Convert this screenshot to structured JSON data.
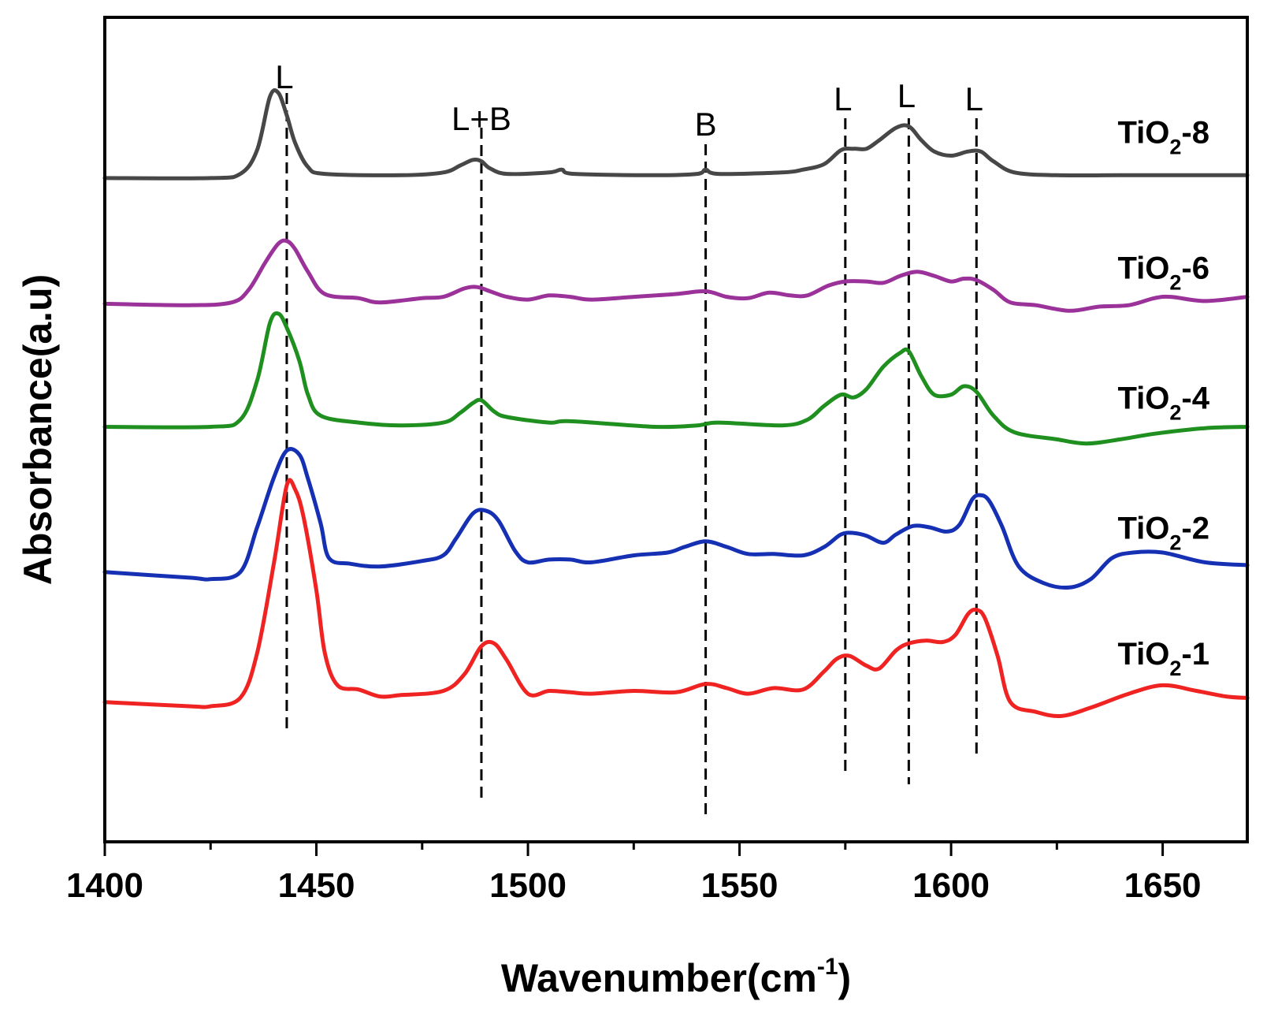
{
  "chart_data": {
    "type": "line",
    "title": "",
    "xlabel": {
      "main": "Wavenumber",
      "unit_open": "(cm",
      "unit_exp": "-1",
      "unit_close": ")"
    },
    "ylabel": "Absorbance(a.u)",
    "xlim": [
      1400,
      1670
    ],
    "ylim": [
      0,
      5.9
    ],
    "x_ticks": [
      1400,
      1450,
      1500,
      1550,
      1600,
      1650
    ],
    "x_minor_ticks": [
      1425,
      1475,
      1525,
      1575,
      1625
    ],
    "grid": false,
    "peak_markers": [
      {
        "label": "L",
        "x": 1443
      },
      {
        "label": "L+B",
        "x": 1489
      },
      {
        "label": "B",
        "x": 1542
      },
      {
        "label": "L",
        "x": 1575
      },
      {
        "label": "L",
        "x": 1590
      },
      {
        "label": "L",
        "x": 1606
      }
    ],
    "series": [
      {
        "name": "TiO2-8",
        "label_main": "TiO",
        "label_sub": "2",
        "label_suffix": "-8",
        "color": "#474747",
        "label_y": 5.0,
        "points": [
          [
            1400,
            4.75
          ],
          [
            1425,
            4.75
          ],
          [
            1432,
            4.78
          ],
          [
            1436,
            4.95
          ],
          [
            1439,
            5.33
          ],
          [
            1441,
            5.36
          ],
          [
            1443,
            5.2
          ],
          [
            1445,
            5.0
          ],
          [
            1448,
            4.83
          ],
          [
            1452,
            4.78
          ],
          [
            1470,
            4.77
          ],
          [
            1480,
            4.79
          ],
          [
            1484,
            4.84
          ],
          [
            1487,
            4.88
          ],
          [
            1489,
            4.87
          ],
          [
            1491,
            4.82
          ],
          [
            1495,
            4.78
          ],
          [
            1505,
            4.79
          ],
          [
            1508,
            4.81
          ],
          [
            1511,
            4.78
          ],
          [
            1530,
            4.77
          ],
          [
            1540,
            4.78
          ],
          [
            1542,
            4.81
          ],
          [
            1545,
            4.78
          ],
          [
            1560,
            4.79
          ],
          [
            1565,
            4.81
          ],
          [
            1570,
            4.85
          ],
          [
            1574,
            4.95
          ],
          [
            1577,
            4.96
          ],
          [
            1580,
            4.96
          ],
          [
            1583,
            5.02
          ],
          [
            1587,
            5.11
          ],
          [
            1590,
            5.12
          ],
          [
            1593,
            5.02
          ],
          [
            1596,
            4.94
          ],
          [
            1600,
            4.91
          ],
          [
            1604,
            4.94
          ],
          [
            1607,
            4.94
          ],
          [
            1610,
            4.87
          ],
          [
            1615,
            4.79
          ],
          [
            1625,
            4.77
          ],
          [
            1640,
            4.77
          ],
          [
            1660,
            4.77
          ],
          [
            1670,
            4.77
          ]
        ]
      },
      {
        "name": "TiO2-6",
        "label_main": "TiO",
        "label_sub": "2",
        "label_suffix": "-6",
        "color": "#9A329A",
        "label_y": 4.03,
        "points": [
          [
            1400,
            3.85
          ],
          [
            1420,
            3.84
          ],
          [
            1430,
            3.86
          ],
          [
            1434,
            3.95
          ],
          [
            1438,
            4.15
          ],
          [
            1441,
            4.28
          ],
          [
            1443,
            4.3
          ],
          [
            1445,
            4.24
          ],
          [
            1448,
            4.08
          ],
          [
            1452,
            3.92
          ],
          [
            1460,
            3.89
          ],
          [
            1465,
            3.86
          ],
          [
            1475,
            3.89
          ],
          [
            1480,
            3.9
          ],
          [
            1485,
            3.96
          ],
          [
            1488,
            3.97
          ],
          [
            1491,
            3.94
          ],
          [
            1495,
            3.9
          ],
          [
            1500,
            3.88
          ],
          [
            1505,
            3.91
          ],
          [
            1510,
            3.9
          ],
          [
            1515,
            3.88
          ],
          [
            1525,
            3.9
          ],
          [
            1535,
            3.92
          ],
          [
            1542,
            3.94
          ],
          [
            1547,
            3.9
          ],
          [
            1552,
            3.89
          ],
          [
            1557,
            3.93
          ],
          [
            1562,
            3.91
          ],
          [
            1566,
            3.91
          ],
          [
            1571,
            3.98
          ],
          [
            1575,
            4.01
          ],
          [
            1580,
            4.01
          ],
          [
            1584,
            4.0
          ],
          [
            1588,
            4.05
          ],
          [
            1592,
            4.08
          ],
          [
            1596,
            4.05
          ],
          [
            1600,
            4.01
          ],
          [
            1603,
            4.03
          ],
          [
            1606,
            4.02
          ],
          [
            1610,
            3.95
          ],
          [
            1614,
            3.86
          ],
          [
            1620,
            3.84
          ],
          [
            1628,
            3.8
          ],
          [
            1635,
            3.83
          ],
          [
            1642,
            3.84
          ],
          [
            1648,
            3.89
          ],
          [
            1652,
            3.9
          ],
          [
            1660,
            3.87
          ],
          [
            1670,
            3.9
          ]
        ]
      },
      {
        "name": "TiO2-4",
        "label_main": "TiO",
        "label_sub": "2",
        "label_suffix": "-4",
        "color": "#1F8F1F",
        "label_y": 3.1,
        "points": [
          [
            1400,
            2.97
          ],
          [
            1425,
            2.97
          ],
          [
            1432,
            3.02
          ],
          [
            1436,
            3.3
          ],
          [
            1439,
            3.71
          ],
          [
            1441,
            3.78
          ],
          [
            1443,
            3.68
          ],
          [
            1446,
            3.44
          ],
          [
            1448,
            3.2
          ],
          [
            1451,
            3.05
          ],
          [
            1460,
            3.0
          ],
          [
            1470,
            2.98
          ],
          [
            1480,
            3.0
          ],
          [
            1484,
            3.07
          ],
          [
            1487,
            3.14
          ],
          [
            1489,
            3.16
          ],
          [
            1492,
            3.08
          ],
          [
            1495,
            3.04
          ],
          [
            1505,
            3.0
          ],
          [
            1510,
            3.01
          ],
          [
            1530,
            2.97
          ],
          [
            1540,
            2.98
          ],
          [
            1545,
            3.0
          ],
          [
            1560,
            2.98
          ],
          [
            1566,
            3.02
          ],
          [
            1570,
            3.12
          ],
          [
            1574,
            3.2
          ],
          [
            1577,
            3.18
          ],
          [
            1580,
            3.24
          ],
          [
            1584,
            3.4
          ],
          [
            1588,
            3.5
          ],
          [
            1590,
            3.51
          ],
          [
            1593,
            3.33
          ],
          [
            1596,
            3.2
          ],
          [
            1600,
            3.2
          ],
          [
            1603,
            3.26
          ],
          [
            1606,
            3.22
          ],
          [
            1610,
            3.05
          ],
          [
            1615,
            2.93
          ],
          [
            1625,
            2.88
          ],
          [
            1632,
            2.85
          ],
          [
            1640,
            2.88
          ],
          [
            1648,
            2.92
          ],
          [
            1660,
            2.96
          ],
          [
            1670,
            2.97
          ]
        ]
      },
      {
        "name": "TiO2-2",
        "label_main": "TiO",
        "label_sub": "2",
        "label_suffix": "-2",
        "color": "#1530B3",
        "label_y": 2.17,
        "points": [
          [
            1400,
            1.93
          ],
          [
            1420,
            1.89
          ],
          [
            1425,
            1.88
          ],
          [
            1432,
            1.93
          ],
          [
            1436,
            2.25
          ],
          [
            1440,
            2.61
          ],
          [
            1443,
            2.8
          ],
          [
            1446,
            2.77
          ],
          [
            1448,
            2.6
          ],
          [
            1451,
            2.28
          ],
          [
            1453,
            2.03
          ],
          [
            1458,
            1.99
          ],
          [
            1465,
            1.97
          ],
          [
            1475,
            2.01
          ],
          [
            1480,
            2.05
          ],
          [
            1483,
            2.17
          ],
          [
            1487,
            2.35
          ],
          [
            1490,
            2.37
          ],
          [
            1493,
            2.3
          ],
          [
            1497,
            2.08
          ],
          [
            1500,
            2.0
          ],
          [
            1505,
            2.02
          ],
          [
            1510,
            2.02
          ],
          [
            1515,
            2.0
          ],
          [
            1525,
            2.05
          ],
          [
            1533,
            2.07
          ],
          [
            1537,
            2.11
          ],
          [
            1542,
            2.15
          ],
          [
            1547,
            2.11
          ],
          [
            1552,
            2.06
          ],
          [
            1558,
            2.06
          ],
          [
            1565,
            2.05
          ],
          [
            1570,
            2.11
          ],
          [
            1574,
            2.2
          ],
          [
            1577,
            2.21
          ],
          [
            1580,
            2.19
          ],
          [
            1584,
            2.14
          ],
          [
            1587,
            2.2
          ],
          [
            1591,
            2.26
          ],
          [
            1595,
            2.25
          ],
          [
            1599,
            2.22
          ],
          [
            1602,
            2.27
          ],
          [
            1605,
            2.45
          ],
          [
            1607,
            2.48
          ],
          [
            1609,
            2.44
          ],
          [
            1612,
            2.26
          ],
          [
            1616,
            1.97
          ],
          [
            1622,
            1.85
          ],
          [
            1628,
            1.82
          ],
          [
            1633,
            1.88
          ],
          [
            1638,
            2.03
          ],
          [
            1643,
            2.07
          ],
          [
            1650,
            2.07
          ],
          [
            1660,
            2.0
          ],
          [
            1670,
            1.98
          ]
        ]
      },
      {
        "name": "TiO2-1",
        "label_main": "TiO",
        "label_sub": "2",
        "label_suffix": "-1",
        "color": "#F02323",
        "label_y": 1.27,
        "points": [
          [
            1400,
            1.0
          ],
          [
            1420,
            0.97
          ],
          [
            1425,
            0.97
          ],
          [
            1432,
            1.03
          ],
          [
            1436,
            1.35
          ],
          [
            1440,
            2.0
          ],
          [
            1443,
            2.55
          ],
          [
            1445,
            2.52
          ],
          [
            1447,
            2.32
          ],
          [
            1450,
            1.8
          ],
          [
            1452,
            1.35
          ],
          [
            1455,
            1.12
          ],
          [
            1460,
            1.09
          ],
          [
            1465,
            1.04
          ],
          [
            1470,
            1.05
          ],
          [
            1480,
            1.08
          ],
          [
            1485,
            1.2
          ],
          [
            1489,
            1.4
          ],
          [
            1492,
            1.42
          ],
          [
            1495,
            1.3
          ],
          [
            1500,
            1.06
          ],
          [
            1505,
            1.08
          ],
          [
            1510,
            1.07
          ],
          [
            1515,
            1.06
          ],
          [
            1525,
            1.08
          ],
          [
            1535,
            1.07
          ],
          [
            1542,
            1.13
          ],
          [
            1547,
            1.1
          ],
          [
            1552,
            1.06
          ],
          [
            1558,
            1.1
          ],
          [
            1565,
            1.09
          ],
          [
            1570,
            1.22
          ],
          [
            1573,
            1.31
          ],
          [
            1576,
            1.33
          ],
          [
            1580,
            1.26
          ],
          [
            1583,
            1.24
          ],
          [
            1587,
            1.37
          ],
          [
            1590,
            1.42
          ],
          [
            1594,
            1.44
          ],
          [
            1598,
            1.43
          ],
          [
            1601,
            1.48
          ],
          [
            1604,
            1.63
          ],
          [
            1606,
            1.66
          ],
          [
            1608,
            1.6
          ],
          [
            1611,
            1.33
          ],
          [
            1614,
            1.0
          ],
          [
            1620,
            0.93
          ],
          [
            1626,
            0.9
          ],
          [
            1633,
            0.96
          ],
          [
            1642,
            1.06
          ],
          [
            1650,
            1.12
          ],
          [
            1658,
            1.08
          ],
          [
            1665,
            1.04
          ],
          [
            1670,
            1.03
          ]
        ]
      }
    ]
  }
}
